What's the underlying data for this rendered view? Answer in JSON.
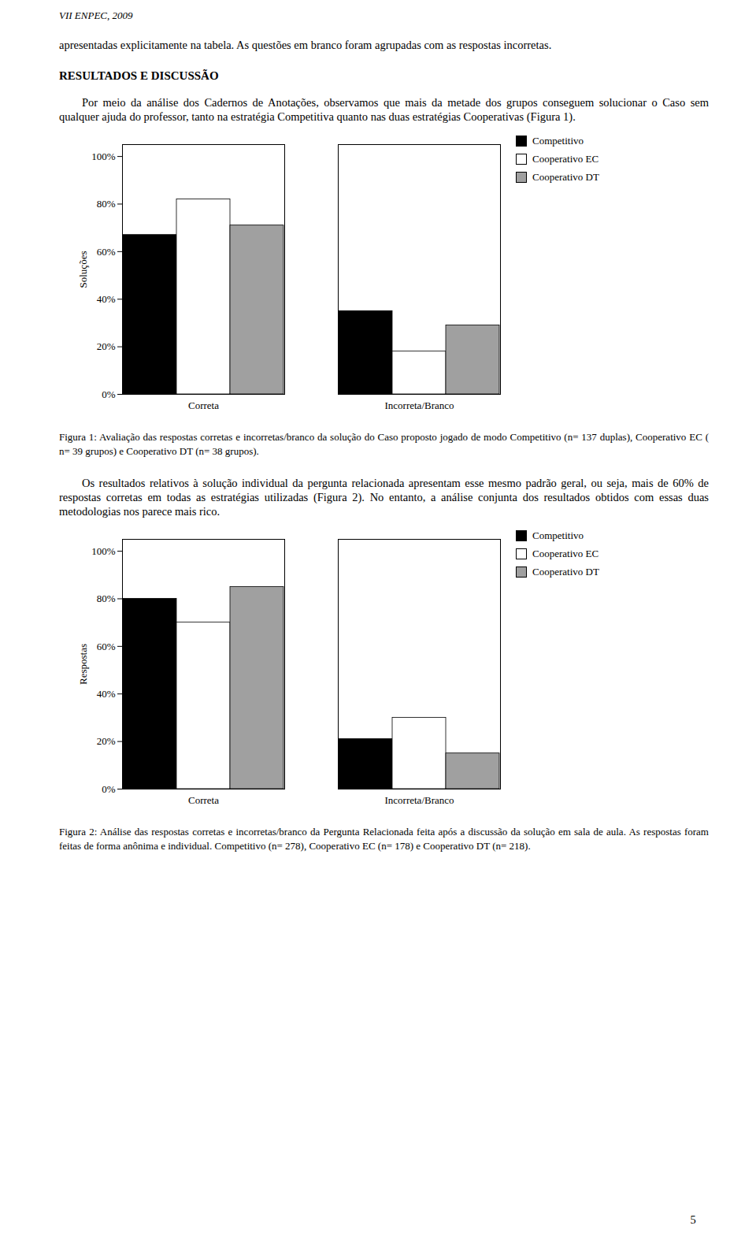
{
  "header": "VII ENPEC, 2009",
  "intro": "apresentadas explicitamente na tabela. As questões em branco foram agrupadas com as respostas incorretas.",
  "heading": "RESULTADOS E DISCUSSÃO",
  "chart_data": [
    {
      "text_before": "Por meio da análise dos Cadernos de Anotações, observamos que mais da metade dos grupos conseguem solucionar o Caso sem qualquer ajuda do professor, tanto na estratégia Competitiva quanto nas duas estratégias Cooperativas (Figura 1).",
      "type": "bar",
      "ylabel": "Soluções",
      "categories": [
        "Correta",
        "Incorreta/Branco"
      ],
      "series": [
        {
          "name": "Competitivo",
          "color": "#000000",
          "values": [
            0.67,
            0.35
          ]
        },
        {
          "name": "Cooperativo EC",
          "color": "#ffffff",
          "values": [
            0.82,
            0.18
          ]
        },
        {
          "name": "Cooperativo DT",
          "color": "#a0a0a0",
          "values": [
            0.71,
            0.29
          ]
        }
      ],
      "ylim": [
        0,
        1.05
      ],
      "yticks": [
        {
          "value": 0.0,
          "label": "0%"
        },
        {
          "value": 0.2,
          "label": "20%"
        },
        {
          "value": 0.4,
          "label": "40%"
        },
        {
          "value": 0.6,
          "label": "60%"
        },
        {
          "value": 0.8,
          "label": "80%"
        },
        {
          "value": 1.0,
          "label": "100%"
        }
      ],
      "grid": false,
      "legend": "upper right",
      "caption": "Figura 1: Avaliação das respostas corretas e incorretas/branco da solução do Caso proposto jogado de modo Competitivo (n= 137 duplas), Cooperativo EC ( n= 39 grupos) e Cooperativo DT (n= 38 grupos)."
    },
    {
      "text_before": "Os resultados relativos à solução individual da pergunta relacionada apresentam esse mesmo padrão geral, ou seja, mais de 60% de respostas corretas em todas as estratégias utilizadas (Figura 2). No entanto, a análise conjunta dos resultados obtidos com essas duas metodologias nos parece mais rico.",
      "type": "bar",
      "ylabel": "Respostas",
      "categories": [
        "Correta",
        "Incorreta/Branco"
      ],
      "series": [
        {
          "name": "Competitivo",
          "color": "#000000",
          "values": [
            0.8,
            0.21
          ]
        },
        {
          "name": "Cooperativo EC",
          "color": "#ffffff",
          "values": [
            0.7,
            0.3
          ]
        },
        {
          "name": "Cooperativo DT",
          "color": "#a0a0a0",
          "values": [
            0.85,
            0.15
          ]
        }
      ],
      "ylim": [
        0,
        1.05
      ],
      "yticks": [
        {
          "value": 0.0,
          "label": "0%"
        },
        {
          "value": 0.2,
          "label": "20%"
        },
        {
          "value": 0.4,
          "label": "40%"
        },
        {
          "value": 0.6,
          "label": "60%"
        },
        {
          "value": 0.8,
          "label": "80%"
        },
        {
          "value": 1.0,
          "label": "100%"
        }
      ],
      "grid": false,
      "legend": "upper right",
      "caption": "Figura 2: Análise das respostas corretas e incorretas/branco da Pergunta Relacionada feita após a discussão da solução em sala de aula. As respostas foram feitas de forma anônima e individual. Competitivo (n= 278), Cooperativo EC (n= 178) e Cooperativo DT (n= 218)."
    }
  ],
  "page_number": "5"
}
